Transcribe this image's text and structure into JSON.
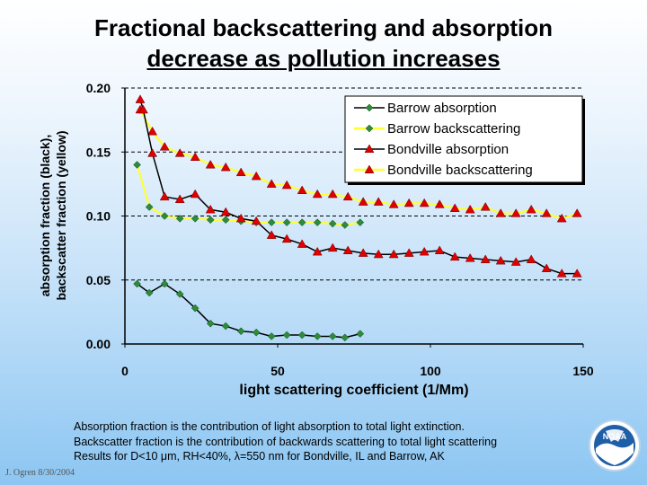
{
  "title_line1": "Fractional backscattering and absorption",
  "title_line2": "decrease as pollution increases",
  "chart_data": {
    "type": "line",
    "xlabel": "light scattering coefficient (1/Mm)",
    "ylabel_line1": "absorption fraction (black),",
    "ylabel_line2": "backscatter fraction (yellow)",
    "xlim": [
      0,
      150
    ],
    "ylim": [
      0,
      0.2
    ],
    "xticks": [
      0,
      50,
      100,
      150
    ],
    "yticks": [
      0.0,
      0.05,
      0.1,
      0.15,
      0.2
    ],
    "ytick_labels": [
      "0.00",
      "0.05",
      "0.10",
      "0.15",
      "0.20"
    ],
    "grid": "horizontal dashed",
    "legend_position": "top-right",
    "series": [
      {
        "name": "Barrow absorption",
        "marker": "diamond",
        "marker_color": "#2e8b3a",
        "line_color": "#000000",
        "x": [
          4,
          8,
          13,
          18,
          23,
          28,
          33,
          38,
          43,
          48,
          53,
          58,
          63,
          68,
          72,
          77
        ],
        "y": [
          0.047,
          0.04,
          0.047,
          0.039,
          0.028,
          0.016,
          0.014,
          0.01,
          0.009,
          0.006,
          0.007,
          0.007,
          0.006,
          0.006,
          0.005,
          0.008
        ]
      },
      {
        "name": "Barrow backscattering",
        "marker": "diamond",
        "marker_color": "#2e8b3a",
        "line_color": "#ffff33",
        "x": [
          4,
          8,
          13,
          18,
          23,
          28,
          33,
          38,
          43,
          48,
          53,
          58,
          63,
          68,
          72,
          77
        ],
        "y": [
          0.14,
          0.107,
          0.1,
          0.098,
          0.098,
          0.097,
          0.097,
          0.096,
          0.095,
          0.095,
          0.095,
          0.095,
          0.095,
          0.094,
          0.093,
          0.095
        ]
      },
      {
        "name": "Bondville absorption",
        "marker": "triangle",
        "marker_color": "#e00000",
        "line_color": "#000000",
        "x": [
          5,
          6,
          9,
          13,
          18,
          23,
          28,
          33,
          38,
          43,
          48,
          53,
          58,
          63,
          68,
          73,
          78,
          83,
          88,
          93,
          98,
          103,
          108,
          113,
          118,
          123,
          128,
          133,
          138,
          143,
          148
        ],
        "y": [
          0.191,
          0.183,
          0.149,
          0.115,
          0.113,
          0.117,
          0.105,
          0.103,
          0.098,
          0.096,
          0.085,
          0.082,
          0.078,
          0.072,
          0.075,
          0.073,
          0.071,
          0.07,
          0.07,
          0.071,
          0.072,
          0.073,
          0.068,
          0.067,
          0.066,
          0.065,
          0.064,
          0.066,
          0.059,
          0.055,
          0.055
        ]
      },
      {
        "name": "Bondville backscattering",
        "marker": "triangle",
        "marker_color": "#e00000",
        "line_color": "#ffff33",
        "x": [
          5,
          9,
          13,
          18,
          23,
          28,
          33,
          38,
          43,
          48,
          53,
          58,
          63,
          68,
          73,
          78,
          83,
          88,
          93,
          98,
          103,
          108,
          113,
          118,
          123,
          128,
          133,
          138,
          143,
          148
        ],
        "y": [
          0.183,
          0.166,
          0.154,
          0.149,
          0.146,
          0.14,
          0.138,
          0.134,
          0.131,
          0.125,
          0.124,
          0.12,
          0.117,
          0.117,
          0.115,
          0.111,
          0.111,
          0.109,
          0.11,
          0.11,
          0.109,
          0.106,
          0.105,
          0.107,
          0.102,
          0.102,
          0.105,
          0.102,
          0.098,
          0.102
        ]
      }
    ]
  },
  "caption_line1": "Absorption fraction is the contribution of light absorption to total light extinction.",
  "caption_line2": "Backscatter fraction is the contribution of backwards scattering to total light scattering",
  "caption_line3": "Results for D<10 μm, RH<40%, λ=550 nm for Bondville, IL and Barrow, AK",
  "credit": "J. Ogren  8/30/2004",
  "logo_text": "NOAA"
}
